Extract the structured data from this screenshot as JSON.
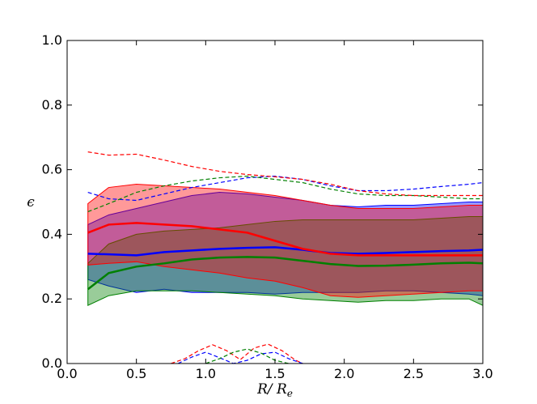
{
  "chart_data": {
    "type": "line",
    "title": "",
    "xlabel": "R/ R_e",
    "xlabel_main": "R/ R",
    "xlabel_sub": "e",
    "ylabel": "ϵ",
    "xlim": [
      0.0,
      3.0
    ],
    "ylim": [
      0.0,
      1.0
    ],
    "xticks": [
      "0.0",
      "0.5",
      "1.0",
      "1.5",
      "2.0",
      "2.5",
      "3.0"
    ],
    "yticks": [
      "0.0",
      "0.2",
      "0.4",
      "0.6",
      "0.8",
      "1.0"
    ],
    "grid": false,
    "legend": "none",
    "series": [
      {
        "color": "#0000ff",
        "x": [
          0.15,
          0.3,
          0.5,
          0.7,
          0.9,
          1.1,
          1.3,
          1.5,
          1.7,
          1.9,
          2.1,
          2.3,
          2.5,
          2.7,
          2.9,
          3.0
        ],
        "median": [
          0.34,
          0.338,
          0.335,
          0.345,
          0.35,
          0.355,
          0.358,
          0.36,
          0.352,
          0.342,
          0.34,
          0.342,
          0.345,
          0.348,
          0.35,
          0.352
        ],
        "band_lo": [
          0.26,
          0.24,
          0.22,
          0.23,
          0.22,
          0.22,
          0.22,
          0.215,
          0.22,
          0.22,
          0.22,
          0.225,
          0.225,
          0.22,
          0.215,
          0.21
        ],
        "band_hi": [
          0.43,
          0.46,
          0.48,
          0.5,
          0.52,
          0.53,
          0.525,
          0.515,
          0.505,
          0.49,
          0.485,
          0.49,
          0.49,
          0.495,
          0.5,
          0.5
        ],
        "upper_dash": [
          0.53,
          0.51,
          0.505,
          0.525,
          0.545,
          0.56,
          0.575,
          0.58,
          0.57,
          0.55,
          0.535,
          0.535,
          0.54,
          0.548,
          0.555,
          0.56
        ]
      },
      {
        "color": "#008000",
        "x": [
          0.15,
          0.3,
          0.5,
          0.7,
          0.9,
          1.1,
          1.3,
          1.5,
          1.7,
          1.9,
          2.1,
          2.3,
          2.5,
          2.7,
          2.9,
          3.0
        ],
        "median": [
          0.23,
          0.28,
          0.3,
          0.31,
          0.322,
          0.328,
          0.33,
          0.328,
          0.318,
          0.308,
          0.302,
          0.303,
          0.306,
          0.31,
          0.312,
          0.31
        ],
        "band_lo": [
          0.18,
          0.21,
          0.225,
          0.225,
          0.225,
          0.22,
          0.215,
          0.21,
          0.2,
          0.195,
          0.19,
          0.195,
          0.195,
          0.2,
          0.2,
          0.18
        ],
        "band_hi": [
          0.31,
          0.37,
          0.4,
          0.41,
          0.415,
          0.42,
          0.43,
          0.44,
          0.445,
          0.445,
          0.445,
          0.445,
          0.445,
          0.45,
          0.455,
          0.455
        ],
        "upper_dash": [
          0.47,
          0.495,
          0.53,
          0.55,
          0.565,
          0.575,
          0.58,
          0.57,
          0.56,
          0.54,
          0.525,
          0.52,
          0.52,
          0.515,
          0.51,
          0.51
        ]
      },
      {
        "color": "#ff0000",
        "x": [
          0.15,
          0.3,
          0.5,
          0.7,
          0.9,
          1.1,
          1.3,
          1.5,
          1.7,
          1.9,
          2.1,
          2.3,
          2.5,
          2.7,
          2.9,
          3.0
        ],
        "median": [
          0.405,
          0.43,
          0.435,
          0.43,
          0.425,
          0.415,
          0.405,
          0.38,
          0.355,
          0.34,
          0.335,
          0.335,
          0.335,
          0.335,
          0.335,
          0.335
        ],
        "band_lo": [
          0.305,
          0.31,
          0.315,
          0.3,
          0.29,
          0.28,
          0.265,
          0.255,
          0.235,
          0.21,
          0.205,
          0.21,
          0.215,
          0.22,
          0.225,
          0.225
        ],
        "band_hi": [
          0.495,
          0.545,
          0.555,
          0.55,
          0.545,
          0.54,
          0.53,
          0.52,
          0.505,
          0.49,
          0.48,
          0.48,
          0.48,
          0.485,
          0.49,
          0.49
        ],
        "upper_dash": [
          0.655,
          0.645,
          0.648,
          0.63,
          0.61,
          0.595,
          0.585,
          0.578,
          0.57,
          0.555,
          0.535,
          0.525,
          0.52,
          0.52,
          0.52,
          0.52
        ]
      }
    ],
    "lower_dash": [
      {
        "color": "#ff0000",
        "x": [
          0.75,
          0.85,
          0.95,
          1.05,
          1.15,
          1.25,
          1.35,
          1.45,
          1.55,
          1.65,
          1.7
        ],
        "y": [
          0.0,
          0.015,
          0.04,
          0.058,
          0.04,
          0.012,
          0.048,
          0.06,
          0.04,
          0.01,
          0.0
        ]
      },
      {
        "color": "#0000ff",
        "x": [
          0.8,
          0.9,
          1.0,
          1.1,
          1.2,
          1.3,
          1.4,
          1.5,
          1.6,
          1.7
        ],
        "y": [
          0.0,
          0.02,
          0.035,
          0.018,
          0.0,
          0.01,
          0.03,
          0.035,
          0.015,
          0.0
        ]
      },
      {
        "color": "#008000",
        "x": [
          1.0,
          1.1,
          1.2,
          1.3,
          1.4,
          1.5,
          1.6
        ],
        "y": [
          0.0,
          0.015,
          0.035,
          0.045,
          0.032,
          0.01,
          0.0
        ]
      }
    ]
  }
}
